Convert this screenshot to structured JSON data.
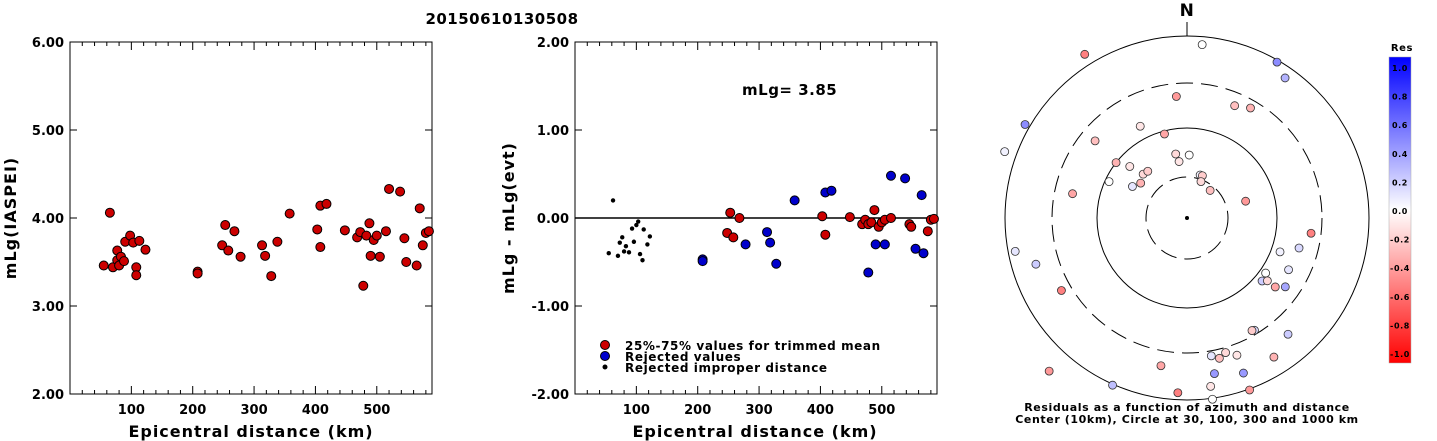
{
  "title": "20150610130508",
  "chart_data": [
    {
      "type": "scatter",
      "title": "",
      "xlabel": "Epicentral distance (km)",
      "ylabel": "mLg(IASPEI)",
      "xlim": [
        0,
        590
      ],
      "ylim": [
        2.0,
        6.0
      ],
      "xticks": [
        "100",
        "200",
        "300",
        "400",
        "500"
      ],
      "yticks": [
        "2.00",
        "3.00",
        "4.00",
        "5.00",
        "6.00"
      ],
      "points": [
        [
          55,
          3.46
        ],
        [
          65,
          4.06
        ],
        [
          70,
          3.44
        ],
        [
          77,
          3.63
        ],
        [
          77,
          3.52
        ],
        [
          80,
          3.46
        ],
        [
          83,
          3.56
        ],
        [
          88,
          3.51
        ],
        [
          90,
          3.73
        ],
        [
          98,
          3.8
        ],
        [
          103,
          3.72
        ],
        [
          108,
          3.44
        ],
        [
          108,
          3.35
        ],
        [
          113,
          3.74
        ],
        [
          123,
          3.64
        ],
        [
          208,
          3.39
        ],
        [
          208,
          3.37
        ],
        [
          248,
          3.69
        ],
        [
          253,
          3.92
        ],
        [
          258,
          3.63
        ],
        [
          268,
          3.85
        ],
        [
          278,
          3.56
        ],
        [
          313,
          3.69
        ],
        [
          318,
          3.57
        ],
        [
          328,
          3.34
        ],
        [
          338,
          3.73
        ],
        [
          358,
          4.05
        ],
        [
          403,
          3.87
        ],
        [
          408,
          4.14
        ],
        [
          408,
          3.67
        ],
        [
          418,
          4.16
        ],
        [
          448,
          3.86
        ],
        [
          468,
          3.78
        ],
        [
          473,
          3.84
        ],
        [
          478,
          3.23
        ],
        [
          483,
          3.8
        ],
        [
          488,
          3.94
        ],
        [
          490,
          3.57
        ],
        [
          495,
          3.75
        ],
        [
          500,
          3.8
        ],
        [
          505,
          3.56
        ],
        [
          515,
          3.85
        ],
        [
          520,
          4.33
        ],
        [
          538,
          4.3
        ],
        [
          545,
          3.77
        ],
        [
          548,
          3.5
        ],
        [
          565,
          3.46
        ],
        [
          570,
          4.11
        ],
        [
          575,
          3.69
        ],
        [
          580,
          3.83
        ],
        [
          585,
          3.85
        ],
        [
          590,
          3.92
        ]
      ]
    },
    {
      "type": "scatter",
      "title": "",
      "xlabel": "Epicentral distance (km)",
      "ylabel": "mLg - mLg(evt)",
      "xlim": [
        0,
        590
      ],
      "ylim": [
        -2.0,
        2.0
      ],
      "xticks": [
        "100",
        "200",
        "300",
        "400",
        "500"
      ],
      "yticks": [
        "-2.00",
        "-1.00",
        "0.00",
        "1.00",
        "2.00"
      ],
      "annotation": "mLg= 3.85",
      "legend": {
        "placement": "bottom-left",
        "items": [
          {
            "label": "25%-75% values for trimmed mean",
            "color": "#cc0000"
          },
          {
            "label": "Rejected values",
            "color": "#0000cc"
          },
          {
            "label": "Rejected improper distance",
            "color": "#000000"
          }
        ]
      },
      "series": [
        {
          "points": [
            [
              248,
              -0.17
            ],
            [
              253,
              0.06
            ],
            [
              258,
              -0.22
            ],
            [
              268,
              0.0
            ],
            [
              403,
              0.02
            ],
            [
              408,
              -0.19
            ],
            [
              448,
              0.01
            ],
            [
              468,
              -0.07
            ],
            [
              473,
              -0.02
            ],
            [
              478,
              -0.07
            ],
            [
              483,
              -0.05
            ],
            [
              488,
              0.09
            ],
            [
              495,
              -0.1
            ],
            [
              500,
              -0.05
            ],
            [
              505,
              -0.02
            ],
            [
              515,
              0.0
            ],
            [
              545,
              -0.07
            ],
            [
              548,
              -0.1
            ],
            [
              575,
              -0.15
            ],
            [
              580,
              -0.02
            ],
            [
              585,
              -0.01
            ],
            [
              590,
              0.07
            ]
          ]
        },
        {
          "points": [
            [
              208,
              -0.47
            ],
            [
              208,
              -0.49
            ],
            [
              278,
              -0.3
            ],
            [
              313,
              -0.16
            ],
            [
              318,
              -0.28
            ],
            [
              328,
              -0.52
            ],
            [
              358,
              0.2
            ],
            [
              408,
              0.29
            ],
            [
              418,
              0.31
            ],
            [
              478,
              -0.62
            ],
            [
              490,
              -0.3
            ],
            [
              505,
              -0.3
            ],
            [
              515,
              0.48
            ],
            [
              538,
              0.45
            ],
            [
              555,
              -0.35
            ],
            [
              565,
              0.26
            ],
            [
              568,
              -0.4
            ]
          ]
        },
        {
          "points": [
            [
              55,
              -0.4
            ],
            [
              62,
              0.2
            ],
            [
              70,
              -0.43
            ],
            [
              73,
              -0.28
            ],
            [
              77,
              -0.22
            ],
            [
              80,
              -0.38
            ],
            [
              83,
              -0.32
            ],
            [
              88,
              -0.39
            ],
            [
              93,
              -0.12
            ],
            [
              96,
              -0.27
            ],
            [
              100,
              -0.08
            ],
            [
              103,
              -0.04
            ],
            [
              106,
              -0.41
            ],
            [
              110,
              -0.48
            ],
            [
              112,
              -0.13
            ],
            [
              118,
              -0.3
            ],
            [
              122,
              -0.21
            ]
          ]
        }
      ]
    },
    {
      "type": "polar-scatter",
      "title": "N",
      "caption_line1": "Residuals as a function of azimuth and distance",
      "caption_line2": "Center (10km), Circle at 30, 100, 300 and 1000 km",
      "colorbar": {
        "label": "Res",
        "ticks": [
          "1.0",
          "0.8",
          "0.6",
          "0.4",
          "0.2",
          "0.0",
          "-0.2",
          "-0.4",
          "-0.6",
          "-0.8",
          "-1.0"
        ],
        "max_color": "#0000ff",
        "mid_color": "#ffffff",
        "min_color": "#ff0000"
      },
      "points": [
        [
          -101,
          175,
          0.1
        ],
        [
          -70,
          194,
          0.05
        ],
        [
          -60,
          187,
          0.45
        ],
        [
          -32,
          193,
          -0.5
        ],
        [
          5,
          174,
          0.0
        ],
        [
          30,
          180,
          0.45
        ],
        [
          35,
          171,
          0.3
        ],
        [
          -156,
          183,
          0.25
        ],
        [
          -138,
          206,
          -0.4
        ],
        [
          -78,
          117,
          -0.35
        ],
        [
          -65,
          86,
          0.0
        ],
        [
          -48,
          77,
          -0.1
        ],
        [
          -60,
          63,
          0.1
        ],
        [
          -53,
          58,
          -0.3
        ],
        [
          -45,
          62,
          -0.15
        ],
        [
          -40,
          61,
          -0.2
        ],
        [
          -52,
          90,
          -0.3
        ],
        [
          -50,
          120,
          -0.25
        ],
        [
          -27,
          103,
          -0.1
        ],
        [
          -5,
          122,
          -0.4
        ],
        [
          23,
          122,
          -0.25
        ],
        [
          30,
          127,
          -0.3
        ],
        [
          -15,
          87,
          -0.35
        ],
        [
          -10,
          65,
          -0.15
        ],
        [
          -8,
          57,
          -0.1
        ],
        [
          2,
          63,
          0.0
        ],
        [
          17,
          45,
          0.05
        ],
        [
          20,
          45,
          -0.2
        ],
        [
          40,
          36,
          -0.25
        ],
        [
          21,
          39,
          -0.15
        ],
        [
          74,
          61,
          -0.4
        ],
        [
          97,
          125,
          -0.5
        ],
        [
          105,
          116,
          0.15
        ],
        [
          117,
          114,
          0.1
        ],
        [
          125,
          120,
          0.35
        ],
        [
          110,
          99,
          0.05
        ],
        [
          125,
          96,
          0.0
        ],
        [
          130,
          98,
          0.2
        ],
        [
          128,
          102,
          -0.15
        ],
        [
          128,
          112,
          -0.35
        ],
        [
          149,
          131,
          0.15
        ],
        [
          160,
          146,
          -0.1
        ],
        [
          167,
          144,
          -0.25
        ],
        [
          164,
          140,
          -0.15
        ],
        [
          139,
          154,
          0.2
        ],
        [
          148,
          164,
          -0.3
        ],
        [
          150,
          130,
          -0.2
        ],
        [
          160,
          165,
          0.4
        ],
        [
          172,
          170,
          -0.1
        ],
        [
          170,
          158,
          0.4
        ],
        [
          160,
          183,
          -0.4
        ],
        [
          172,
          183,
          0.0
        ],
        [
          183,
          175,
          -0.5
        ],
        [
          170,
          140,
          0.1
        ],
        [
          190,
          150,
          -0.35
        ],
        [
          240,
          145,
          -0.5
        ],
        [
          253,
          158,
          0.2
        ]
      ]
    }
  ]
}
